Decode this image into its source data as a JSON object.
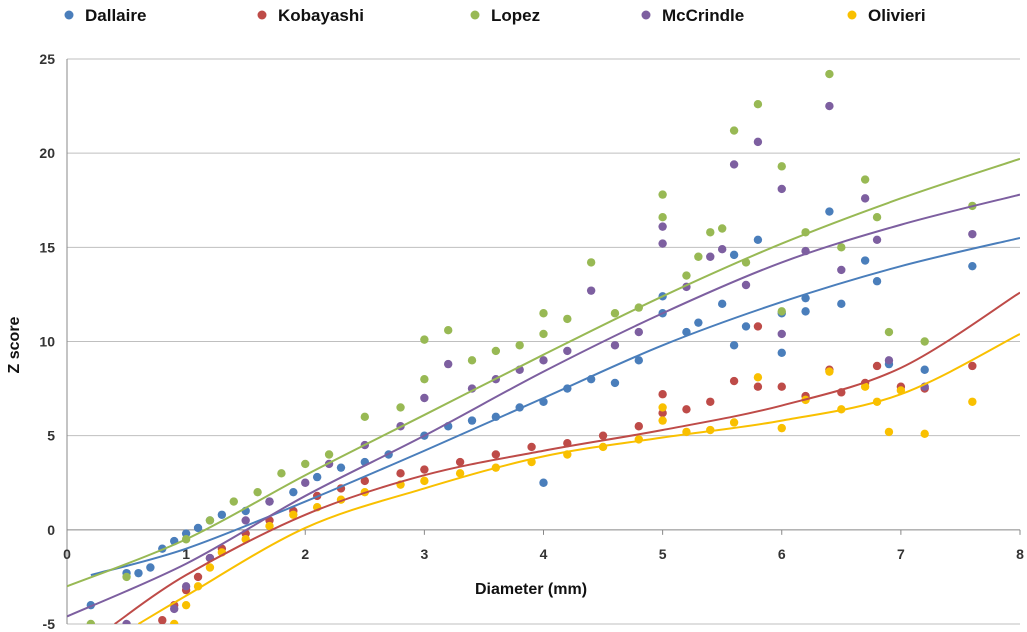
{
  "chart_data": {
    "type": "scatter",
    "title": "",
    "xlabel": "Diameter (mm)",
    "ylabel": "Z score",
    "xlim": [
      0,
      8
    ],
    "ylim": [
      -5,
      25
    ],
    "xticks": [
      0,
      1,
      2,
      3,
      4,
      5,
      6,
      7,
      8
    ],
    "yticks": [
      -5,
      0,
      5,
      10,
      15,
      20,
      25
    ],
    "grid": "horizontal",
    "legend_position": "top",
    "series": [
      {
        "name": "Dallaire",
        "color": "#4a7ebb",
        "trendline": [
          [
            0.2,
            -2.4
          ],
          [
            1,
            -1.0
          ],
          [
            2,
            1.5
          ],
          [
            3,
            4.2
          ],
          [
            4,
            7.0
          ],
          [
            5,
            9.8
          ],
          [
            6,
            12.1
          ],
          [
            7,
            14.0
          ],
          [
            8,
            15.5
          ]
        ],
        "points": [
          [
            0.2,
            -4.0
          ],
          [
            0.5,
            -2.3
          ],
          [
            0.6,
            -2.3
          ],
          [
            0.7,
            -2.0
          ],
          [
            0.8,
            -1.0
          ],
          [
            0.9,
            -0.6
          ],
          [
            1.0,
            -0.2
          ],
          [
            1.1,
            0.1
          ],
          [
            1.2,
            0.5
          ],
          [
            1.3,
            0.8
          ],
          [
            1.5,
            1.0
          ],
          [
            1.7,
            1.5
          ],
          [
            1.9,
            2.0
          ],
          [
            2.1,
            2.8
          ],
          [
            2.3,
            3.3
          ],
          [
            2.5,
            3.6
          ],
          [
            2.7,
            4.0
          ],
          [
            3.0,
            5.0
          ],
          [
            3.2,
            5.5
          ],
          [
            3.4,
            5.8
          ],
          [
            3.6,
            6.0
          ],
          [
            3.8,
            6.5
          ],
          [
            4.0,
            6.8
          ],
          [
            4.0,
            2.5
          ],
          [
            4.2,
            7.5
          ],
          [
            4.4,
            8.0
          ],
          [
            4.6,
            7.8
          ],
          [
            4.8,
            9.0
          ],
          [
            5.0,
            11.5
          ],
          [
            5.0,
            12.4
          ],
          [
            5.2,
            10.5
          ],
          [
            5.3,
            11.0
          ],
          [
            5.5,
            12.0
          ],
          [
            5.6,
            9.8
          ],
          [
            5.6,
            14.6
          ],
          [
            5.7,
            10.8
          ],
          [
            5.8,
            15.4
          ],
          [
            6.0,
            9.4
          ],
          [
            6.0,
            11.5
          ],
          [
            6.2,
            12.3
          ],
          [
            6.2,
            11.6
          ],
          [
            6.4,
            16.9
          ],
          [
            6.5,
            12.0
          ],
          [
            6.7,
            14.3
          ],
          [
            6.8,
            13.2
          ],
          [
            6.9,
            8.8
          ],
          [
            7.2,
            8.5
          ],
          [
            7.6,
            14.0
          ]
        ]
      },
      {
        "name": "Kobayashi",
        "color": "#be4b48",
        "trendline": [
          [
            0.4,
            -5.0
          ],
          [
            1,
            -2.4
          ],
          [
            2,
            0.8
          ],
          [
            3,
            2.9
          ],
          [
            4,
            4.2
          ],
          [
            5,
            5.3
          ],
          [
            6,
            6.6
          ],
          [
            7,
            8.6
          ],
          [
            8,
            12.6
          ]
        ],
        "points": [
          [
            0.8,
            -4.8
          ],
          [
            0.9,
            -4.0
          ],
          [
            1.0,
            -3.2
          ],
          [
            1.1,
            -2.5
          ],
          [
            1.2,
            -1.5
          ],
          [
            1.3,
            -1.0
          ],
          [
            1.5,
            -0.2
          ],
          [
            1.7,
            0.5
          ],
          [
            1.9,
            1.0
          ],
          [
            2.1,
            1.8
          ],
          [
            2.3,
            2.2
          ],
          [
            2.5,
            2.6
          ],
          [
            2.8,
            3.0
          ],
          [
            3.0,
            3.2
          ],
          [
            3.3,
            3.6
          ],
          [
            3.6,
            4.0
          ],
          [
            3.9,
            4.4
          ],
          [
            4.2,
            4.6
          ],
          [
            4.5,
            5.0
          ],
          [
            4.8,
            5.5
          ],
          [
            5.0,
            7.2
          ],
          [
            5.0,
            6.2
          ],
          [
            5.2,
            6.4
          ],
          [
            5.4,
            6.8
          ],
          [
            5.6,
            7.9
          ],
          [
            5.8,
            7.6
          ],
          [
            5.8,
            10.8
          ],
          [
            6.0,
            7.6
          ],
          [
            6.2,
            7.1
          ],
          [
            6.4,
            8.5
          ],
          [
            6.5,
            7.3
          ],
          [
            6.7,
            7.8
          ],
          [
            6.8,
            8.7
          ],
          [
            7.0,
            7.6
          ],
          [
            7.2,
            7.5
          ],
          [
            7.6,
            8.7
          ]
        ]
      },
      {
        "name": "Lopez",
        "color": "#98b954",
        "trendline": [
          [
            0.0,
            -3.0
          ],
          [
            1,
            -0.5
          ],
          [
            2,
            2.9
          ],
          [
            3,
            6.1
          ],
          [
            4,
            9.3
          ],
          [
            5,
            12.4
          ],
          [
            6,
            15.2
          ],
          [
            7,
            17.6
          ],
          [
            8,
            19.7
          ]
        ],
        "points": [
          [
            0.2,
            -5.0
          ],
          [
            0.5,
            -2.5
          ],
          [
            1.0,
            -0.5
          ],
          [
            1.2,
            0.5
          ],
          [
            1.4,
            1.5
          ],
          [
            1.6,
            2.0
          ],
          [
            1.8,
            3.0
          ],
          [
            2.0,
            3.5
          ],
          [
            2.2,
            4.0
          ],
          [
            2.5,
            6.0
          ],
          [
            2.8,
            6.5
          ],
          [
            3.0,
            8.0
          ],
          [
            3.0,
            10.1
          ],
          [
            3.2,
            10.6
          ],
          [
            3.4,
            9.0
          ],
          [
            3.6,
            9.5
          ],
          [
            3.8,
            9.8
          ],
          [
            4.0,
            10.4
          ],
          [
            4.0,
            11.5
          ],
          [
            4.2,
            11.2
          ],
          [
            4.4,
            14.2
          ],
          [
            4.6,
            11.5
          ],
          [
            4.8,
            11.8
          ],
          [
            5.0,
            16.6
          ],
          [
            5.0,
            17.8
          ],
          [
            5.2,
            13.5
          ],
          [
            5.3,
            14.5
          ],
          [
            5.4,
            15.8
          ],
          [
            5.5,
            16.0
          ],
          [
            5.6,
            21.2
          ],
          [
            5.7,
            14.2
          ],
          [
            5.8,
            22.6
          ],
          [
            6.0,
            19.3
          ],
          [
            6.0,
            11.6
          ],
          [
            6.2,
            15.8
          ],
          [
            6.4,
            24.2
          ],
          [
            6.5,
            15.0
          ],
          [
            6.7,
            18.6
          ],
          [
            6.8,
            16.6
          ],
          [
            6.9,
            10.5
          ],
          [
            7.2,
            10.0
          ],
          [
            7.6,
            17.2
          ]
        ]
      },
      {
        "name": "McCrindle",
        "color": "#7d5fa0",
        "trendline": [
          [
            0.0,
            -4.6
          ],
          [
            1,
            -1.8
          ],
          [
            2,
            1.8
          ],
          [
            3,
            5.0
          ],
          [
            4,
            8.4
          ],
          [
            5,
            11.5
          ],
          [
            6,
            14.2
          ],
          [
            7,
            16.2
          ],
          [
            8,
            17.8
          ]
        ],
        "points": [
          [
            0.5,
            -5.0
          ],
          [
            0.9,
            -4.2
          ],
          [
            1.0,
            -3.0
          ],
          [
            1.2,
            -1.5
          ],
          [
            1.5,
            0.5
          ],
          [
            1.7,
            1.5
          ],
          [
            2.0,
            2.5
          ],
          [
            2.2,
            3.5
          ],
          [
            2.5,
            4.5
          ],
          [
            2.8,
            5.5
          ],
          [
            3.0,
            7.0
          ],
          [
            3.2,
            8.8
          ],
          [
            3.4,
            7.5
          ],
          [
            3.6,
            8.0
          ],
          [
            3.8,
            8.5
          ],
          [
            4.0,
            9.0
          ],
          [
            4.2,
            9.5
          ],
          [
            4.4,
            12.7
          ],
          [
            4.6,
            9.8
          ],
          [
            4.8,
            10.5
          ],
          [
            5.0,
            15.2
          ],
          [
            5.0,
            16.1
          ],
          [
            5.2,
            12.9
          ],
          [
            5.4,
            14.5
          ],
          [
            5.5,
            14.9
          ],
          [
            5.6,
            19.4
          ],
          [
            5.7,
            13.0
          ],
          [
            5.8,
            20.6
          ],
          [
            6.0,
            18.1
          ],
          [
            6.0,
            10.4
          ],
          [
            6.2,
            14.8
          ],
          [
            6.4,
            22.5
          ],
          [
            6.5,
            13.8
          ],
          [
            6.7,
            17.6
          ],
          [
            6.8,
            15.4
          ],
          [
            6.9,
            9.0
          ],
          [
            7.2,
            7.6
          ],
          [
            7.6,
            15.7
          ]
        ]
      },
      {
        "name": "Olivieri",
        "color": "#f9c000",
        "trendline": [
          [
            0.6,
            -5.0
          ],
          [
            1,
            -3.5
          ],
          [
            2,
            0.1
          ],
          [
            3,
            2.2
          ],
          [
            4,
            3.9
          ],
          [
            5,
            4.9
          ],
          [
            6,
            5.8
          ],
          [
            7,
            7.2
          ],
          [
            8,
            10.4
          ]
        ],
        "points": [
          [
            0.9,
            -5.0
          ],
          [
            1.0,
            -4.0
          ],
          [
            1.1,
            -3.0
          ],
          [
            1.2,
            -2.0
          ],
          [
            1.3,
            -1.2
          ],
          [
            1.5,
            -0.5
          ],
          [
            1.7,
            0.2
          ],
          [
            1.9,
            0.8
          ],
          [
            2.1,
            1.2
          ],
          [
            2.3,
            1.6
          ],
          [
            2.5,
            2.0
          ],
          [
            2.8,
            2.4
          ],
          [
            3.0,
            2.6
          ],
          [
            3.3,
            3.0
          ],
          [
            3.6,
            3.3
          ],
          [
            3.9,
            3.6
          ],
          [
            4.2,
            4.0
          ],
          [
            4.5,
            4.4
          ],
          [
            4.8,
            4.8
          ],
          [
            5.0,
            6.5
          ],
          [
            5.0,
            5.8
          ],
          [
            5.2,
            5.2
          ],
          [
            5.4,
            5.3
          ],
          [
            5.6,
            5.7
          ],
          [
            5.8,
            8.1
          ],
          [
            6.0,
            5.4
          ],
          [
            6.2,
            6.9
          ],
          [
            6.4,
            8.4
          ],
          [
            6.5,
            6.4
          ],
          [
            6.7,
            7.6
          ],
          [
            6.8,
            6.8
          ],
          [
            6.9,
            5.2
          ],
          [
            7.0,
            7.4
          ],
          [
            7.2,
            5.1
          ],
          [
            7.6,
            6.8
          ]
        ]
      }
    ]
  }
}
